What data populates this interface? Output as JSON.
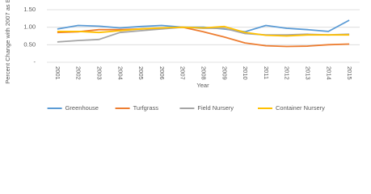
{
  "chart_data": {
    "type": "line",
    "y_label": "Percent Change with 2007 as Base",
    "x_label": "Year",
    "categories": [
      "2001",
      "2002",
      "2003",
      "2004",
      "2005",
      "2006",
      "2007",
      "2008",
      "2009",
      "2010",
      "2011",
      "2012",
      "2013",
      "2014",
      "2015"
    ],
    "series": [
      {
        "name": "Greenhouse",
        "color": "#5b9bd5",
        "values": [
          0.95,
          1.05,
          1.03,
          0.98,
          1.02,
          1.05,
          1.0,
          1.0,
          0.95,
          0.87,
          1.05,
          0.97,
          0.93,
          0.88,
          1.2
        ]
      },
      {
        "name": "Turfgrass",
        "color": "#ed7d31",
        "values": [
          0.85,
          0.87,
          0.93,
          0.93,
          0.95,
          0.97,
          1.0,
          0.87,
          0.72,
          0.55,
          0.47,
          0.45,
          0.46,
          0.5,
          0.52
        ]
      },
      {
        "name": "Field Nursery",
        "color": "#a5a5a5",
        "values": [
          0.58,
          0.62,
          0.65,
          0.85,
          0.9,
          0.95,
          1.0,
          0.97,
          0.97,
          0.82,
          0.78,
          0.78,
          0.8,
          0.78,
          0.8
        ]
      },
      {
        "name": "Container Nursery",
        "color": "#ffc000",
        "values": [
          0.88,
          0.88,
          0.85,
          0.9,
          0.95,
          0.98,
          1.0,
          0.98,
          1.02,
          0.85,
          0.77,
          0.75,
          0.78,
          0.78,
          0.78
        ]
      }
    ],
    "ylim": [
      0,
      1.5
    ],
    "yticks": [
      {
        "value": 0,
        "label": "-"
      },
      {
        "value": 0.5,
        "label": "0.50"
      },
      {
        "value": 1,
        "label": "1.00"
      },
      {
        "value": 1.5,
        "label": "1.50"
      }
    ],
    "grid": true,
    "legend": "bottom"
  }
}
